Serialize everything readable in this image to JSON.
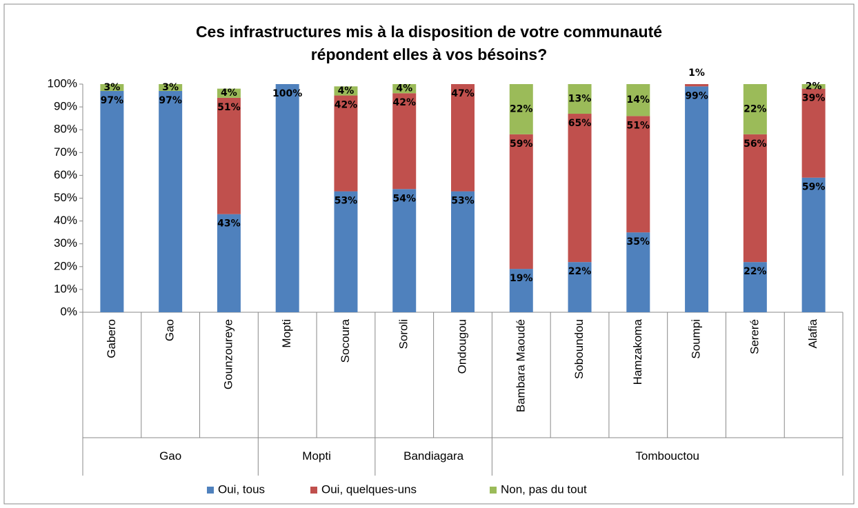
{
  "chart_data": {
    "type": "stacked_bar",
    "title": "Ces infrastructures mis à la disposition de votre communauté répondent elles à vos bésoins?",
    "categories": [
      "Gabero",
      "Gao",
      "Gounzoureye",
      "Mopti",
      "Socoura",
      "Soroli",
      "Ondougou",
      "Bambara Maoudé",
      "Soboundou",
      "Hamzakoma",
      "Soumpi",
      "Sereré",
      "Alafia"
    ],
    "category_groups": [
      "Gao",
      "Gao",
      "Gao",
      "Mopti",
      "Mopti",
      "Bandiagara",
      "Bandiagara",
      "Tombouctou",
      "Tombouctou",
      "Tombouctou",
      "Tombouctou",
      "Tombouctou",
      "Tombouctou"
    ],
    "series": [
      {
        "name": "Oui, tous",
        "color": "#4f81bd",
        "values": [
          97,
          97,
          43,
          100,
          53,
          54,
          53,
          19,
          22,
          35,
          99,
          22,
          59
        ],
        "value_labels": [
          "97%",
          "97%",
          "43%",
          "100%",
          "53%",
          "54%",
          "53%",
          "19%",
          "22%",
          "35%",
          "99%",
          "22%",
          "59%"
        ]
      },
      {
        "name": "Oui, quelques-uns",
        "color": "#c0504d",
        "values": [
          null,
          null,
          51,
          null,
          42,
          42,
          47,
          59,
          65,
          51,
          1,
          56,
          39
        ],
        "value_labels": [
          null,
          null,
          "51%",
          null,
          "42%",
          "42%",
          "47%",
          "59%",
          "65%",
          "51%",
          "1%",
          "56%",
          "39%"
        ]
      },
      {
        "name": "Non, pas du tout",
        "color": "#9bbb59",
        "values": [
          3,
          3,
          4,
          null,
          4,
          4,
          null,
          22,
          13,
          14,
          null,
          22,
          2
        ],
        "value_labels": [
          "3%",
          "3%",
          "4%",
          null,
          "4%",
          "4%",
          null,
          "22%",
          "13%",
          "14%",
          null,
          "22%",
          "2%"
        ]
      }
    ],
    "ylim": [
      0,
      100
    ],
    "yticks": [
      {
        "value": 0,
        "label": "0%"
      },
      {
        "value": 10,
        "label": "10%"
      },
      {
        "value": 20,
        "label": "20%"
      },
      {
        "value": 30,
        "label": "30%"
      },
      {
        "value": 40,
        "label": "40%"
      },
      {
        "value": 50,
        "label": "50%"
      },
      {
        "value": 60,
        "label": "60%"
      },
      {
        "value": 70,
        "label": "70%"
      },
      {
        "value": 80,
        "label": "80%"
      },
      {
        "value": 90,
        "label": "90%"
      },
      {
        "value": 100,
        "label": "100%"
      }
    ],
    "legend": "bottom"
  }
}
